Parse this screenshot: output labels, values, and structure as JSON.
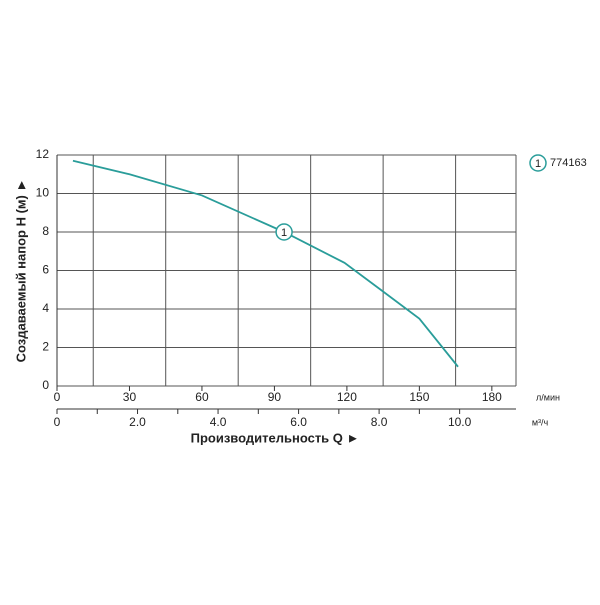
{
  "chart_data": {
    "type": "line",
    "ylabel": "Создаваемый напор H (м) ►",
    "xlabel": "Производительность Q ►",
    "x_unit": "л/мин",
    "x2_unit": "м³/ч",
    "xlim": [
      0,
      190
    ],
    "xticks": [
      0,
      30,
      60,
      90,
      120,
      150,
      180
    ],
    "x2lim": [
      0,
      11.4
    ],
    "x2ticks": [
      0,
      {
        "value": 2,
        "label": "2.0"
      },
      {
        "value": 4,
        "label": "4.0"
      },
      {
        "value": 6,
        "label": "6.0"
      },
      {
        "value": 8,
        "label": "8.0"
      },
      {
        "value": 10,
        "label": "10.0"
      }
    ],
    "ylim": [
      0,
      12
    ],
    "yticks": [
      0,
      2,
      4,
      6,
      8,
      10,
      12
    ],
    "grid": true,
    "legend": "right",
    "series": [
      {
        "name": "774163",
        "marker": "1",
        "marker_x": 94,
        "color": "#2a9d9a",
        "x": [
          6.6,
          30,
          60,
          94,
          119,
          134,
          150,
          166
        ],
        "values": [
          11.7,
          11.0,
          9.9,
          8.0,
          6.4,
          5.0,
          3.5,
          1.0
        ]
      }
    ]
  }
}
